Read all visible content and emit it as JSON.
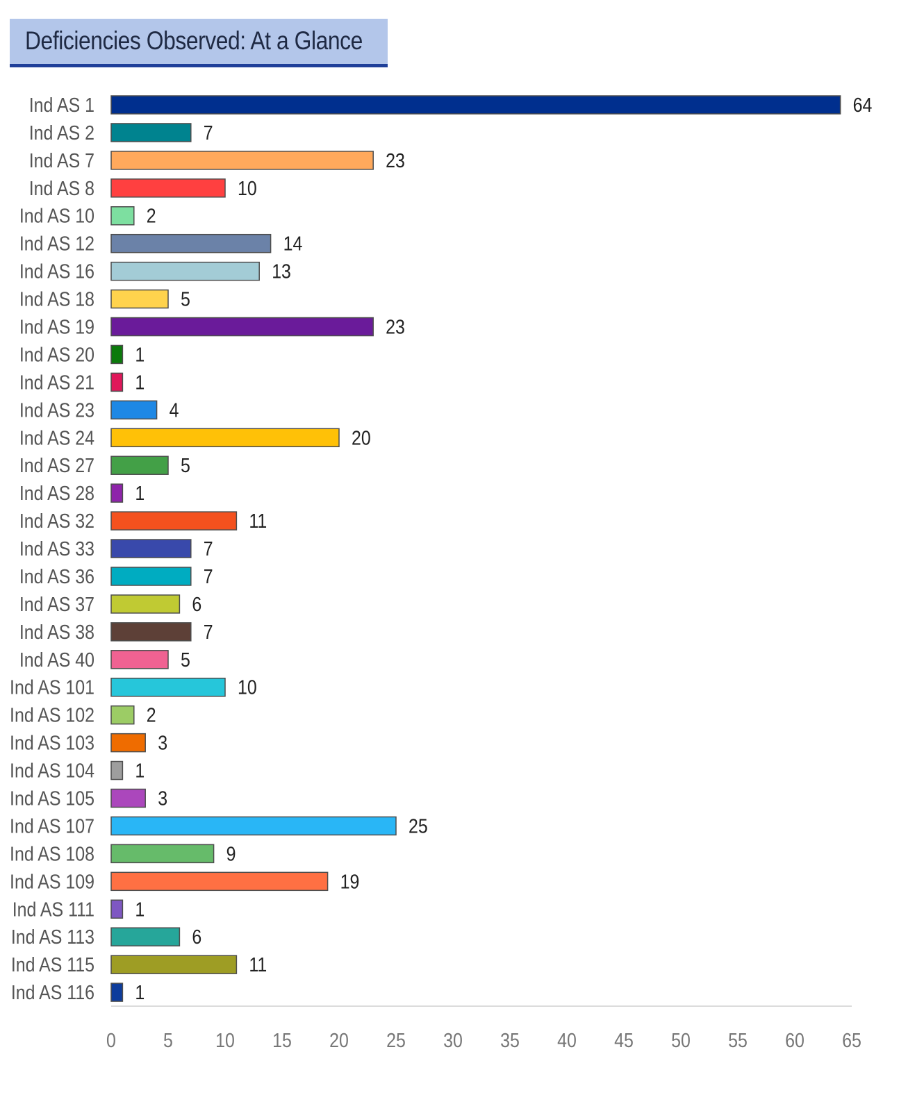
{
  "header": {
    "title": "Deficiencies Observed: At a Glance"
  },
  "chart_data": {
    "type": "bar",
    "orientation": "horizontal",
    "title": "Deficiencies Observed: At a Glance",
    "xlabel": "",
    "ylabel": "",
    "xlim": [
      0,
      65
    ],
    "ticks": [
      0,
      5,
      10,
      15,
      20,
      25,
      30,
      35,
      40,
      45,
      50,
      55,
      60,
      65
    ],
    "grid": false,
    "data_labels": true,
    "categories": [
      "Ind AS 1",
      "Ind AS 2",
      "Ind AS 7",
      "Ind AS 8",
      "Ind AS 10",
      "Ind AS 12",
      "Ind AS 16",
      "Ind AS 18",
      "Ind AS 19",
      "Ind AS 20",
      "Ind AS 21",
      "Ind AS 23",
      "Ind AS 24",
      "Ind AS 27",
      "Ind AS 28",
      "Ind AS 32",
      "Ind AS 33",
      "Ind AS 36",
      "Ind AS 37",
      "Ind AS 38",
      "Ind AS 40",
      "Ind AS 101",
      "Ind AS 102",
      "Ind AS 103",
      "Ind AS 104",
      "Ind AS 105",
      "Ind AS 107",
      "Ind AS 108",
      "Ind AS 109",
      "Ind AS 111",
      "Ind AS 113",
      "Ind AS 115",
      "Ind AS 116"
    ],
    "values": [
      64,
      7,
      23,
      10,
      2,
      14,
      13,
      5,
      23,
      1,
      1,
      4,
      20,
      5,
      1,
      11,
      7,
      7,
      6,
      7,
      5,
      10,
      2,
      3,
      1,
      3,
      25,
      9,
      19,
      1,
      6,
      11,
      1
    ],
    "colors": [
      "#002f8e",
      "#00838f",
      "#ffa95c",
      "#ff4040",
      "#7ddfa0",
      "#6b82a8",
      "#a3ccd6",
      "#ffd34d",
      "#6a1b9a",
      "#0b7a0b",
      "#e0175a",
      "#1e88e5",
      "#ffc107",
      "#43a047",
      "#8e24aa",
      "#f4511e",
      "#3949ab",
      "#00acc1",
      "#c0ca33",
      "#5d4037",
      "#f06292",
      "#26c6da",
      "#9ccc65",
      "#ef6c00",
      "#9e9e9e",
      "#ab47bc",
      "#29b6f6",
      "#66bb6a",
      "#ff7043",
      "#7e57c2",
      "#26a69a",
      "#9e9d24",
      "#0d3c9c"
    ]
  }
}
